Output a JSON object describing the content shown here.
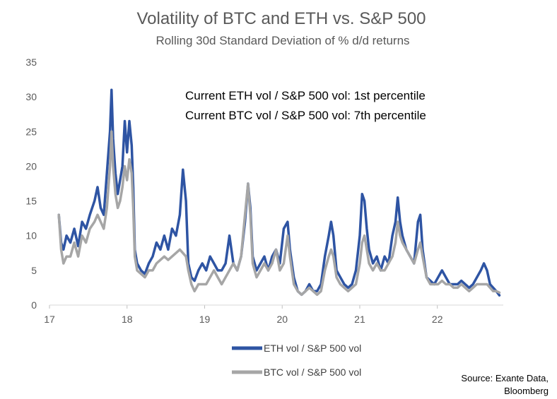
{
  "chart_data": {
    "type": "line",
    "title": "Volatility of BTC and ETH vs. S&P 500",
    "subtitle": "Rolling 30d Standard Deviation of % d/d returns",
    "xlabel": "",
    "ylabel": "",
    "xlim": [
      17.0,
      22.85
    ],
    "ylim": [
      0,
      35
    ],
    "x_ticks": [
      "17",
      "18",
      "19",
      "20",
      "21",
      "22"
    ],
    "y_ticks": [
      "0",
      "5",
      "10",
      "15",
      "20",
      "25",
      "30",
      "35"
    ],
    "grid": false,
    "legend_position": "bottom",
    "annotations": [
      "Current ETH vol / S&P 500 vol: 1st percentile",
      "Current BTC vol / S&P 500 vol: 7th percentile"
    ],
    "source": [
      "Source: Exante Data,",
      "Bloomberg"
    ],
    "series": [
      {
        "name": "ETH vol / S&P 500 vol",
        "color": "#2e54a3",
        "points": [
          [
            17.12,
            13
          ],
          [
            17.15,
            9
          ],
          [
            17.18,
            8
          ],
          [
            17.22,
            10
          ],
          [
            17.27,
            9
          ],
          [
            17.32,
            11
          ],
          [
            17.37,
            8.5
          ],
          [
            17.42,
            12
          ],
          [
            17.47,
            11
          ],
          [
            17.52,
            13
          ],
          [
            17.58,
            15
          ],
          [
            17.62,
            17
          ],
          [
            17.66,
            14
          ],
          [
            17.7,
            13
          ],
          [
            17.74,
            19
          ],
          [
            17.78,
            25
          ],
          [
            17.8,
            31
          ],
          [
            17.82,
            24
          ],
          [
            17.85,
            19
          ],
          [
            17.88,
            16
          ],
          [
            17.91,
            18
          ],
          [
            17.94,
            20
          ],
          [
            17.97,
            26.5
          ],
          [
            18.0,
            22
          ],
          [
            18.03,
            26.5
          ],
          [
            18.06,
            23
          ],
          [
            18.08,
            17
          ],
          [
            18.1,
            8
          ],
          [
            18.13,
            6
          ],
          [
            18.18,
            5
          ],
          [
            18.23,
            4.5
          ],
          [
            18.28,
            6
          ],
          [
            18.33,
            7
          ],
          [
            18.38,
            9
          ],
          [
            18.43,
            8
          ],
          [
            18.48,
            10
          ],
          [
            18.53,
            8
          ],
          [
            18.58,
            11
          ],
          [
            18.63,
            10
          ],
          [
            18.68,
            13
          ],
          [
            18.72,
            19.5
          ],
          [
            18.76,
            15
          ],
          [
            18.79,
            6
          ],
          [
            18.83,
            4
          ],
          [
            18.87,
            3.5
          ],
          [
            18.92,
            5
          ],
          [
            18.97,
            6
          ],
          [
            19.02,
            5
          ],
          [
            19.07,
            7
          ],
          [
            19.12,
            6
          ],
          [
            19.17,
            5
          ],
          [
            19.22,
            5
          ],
          [
            19.27,
            6
          ],
          [
            19.32,
            10
          ],
          [
            19.37,
            6
          ],
          [
            19.42,
            5
          ],
          [
            19.47,
            7
          ],
          [
            19.52,
            12
          ],
          [
            19.56,
            17.5
          ],
          [
            19.59,
            14
          ],
          [
            19.62,
            7
          ],
          [
            19.67,
            5
          ],
          [
            19.72,
            6
          ],
          [
            19.77,
            7
          ],
          [
            19.82,
            5
          ],
          [
            19.87,
            7
          ],
          [
            19.92,
            8
          ],
          [
            19.97,
            6
          ],
          [
            20.02,
            11
          ],
          [
            20.07,
            12
          ],
          [
            20.1,
            8
          ],
          [
            20.15,
            4
          ],
          [
            20.2,
            2
          ],
          [
            20.25,
            1.5
          ],
          [
            20.3,
            2
          ],
          [
            20.35,
            3
          ],
          [
            20.4,
            2
          ],
          [
            20.45,
            2
          ],
          [
            20.5,
            3
          ],
          [
            20.55,
            7
          ],
          [
            20.6,
            10
          ],
          [
            20.63,
            12
          ],
          [
            20.66,
            10
          ],
          [
            20.7,
            5
          ],
          [
            20.75,
            4
          ],
          [
            20.8,
            3
          ],
          [
            20.85,
            2.5
          ],
          [
            20.9,
            3
          ],
          [
            20.95,
            5
          ],
          [
            21.0,
            10
          ],
          [
            21.03,
            16
          ],
          [
            21.06,
            15
          ],
          [
            21.09,
            11
          ],
          [
            21.12,
            8
          ],
          [
            21.17,
            6
          ],
          [
            21.22,
            7
          ],
          [
            21.27,
            5
          ],
          [
            21.32,
            7
          ],
          [
            21.37,
            6
          ],
          [
            21.42,
            10
          ],
          [
            21.46,
            12
          ],
          [
            21.49,
            15.5
          ],
          [
            21.52,
            12
          ],
          [
            21.55,
            10
          ],
          [
            21.6,
            8
          ],
          [
            21.65,
            7
          ],
          [
            21.7,
            6
          ],
          [
            21.75,
            12
          ],
          [
            21.78,
            13
          ],
          [
            21.81,
            8
          ],
          [
            21.86,
            4
          ],
          [
            21.91,
            3.5
          ],
          [
            21.96,
            3
          ],
          [
            22.01,
            4
          ],
          [
            22.06,
            5
          ],
          [
            22.11,
            4
          ],
          [
            22.16,
            3
          ],
          [
            22.21,
            3
          ],
          [
            22.26,
            3
          ],
          [
            22.31,
            3.5
          ],
          [
            22.36,
            3
          ],
          [
            22.41,
            2.5
          ],
          [
            22.46,
            3
          ],
          [
            22.51,
            4
          ],
          [
            22.56,
            5
          ],
          [
            22.6,
            6
          ],
          [
            22.64,
            5
          ],
          [
            22.68,
            3
          ],
          [
            22.72,
            2.5
          ],
          [
            22.76,
            2
          ],
          [
            22.8,
            1.4
          ]
        ]
      },
      {
        "name": "BTC vol / S&P 500 vol",
        "color": "#a6a6a6",
        "points": [
          [
            17.12,
            13
          ],
          [
            17.15,
            8
          ],
          [
            17.18,
            6
          ],
          [
            17.22,
            7
          ],
          [
            17.27,
            7
          ],
          [
            17.32,
            9
          ],
          [
            17.37,
            7
          ],
          [
            17.42,
            10
          ],
          [
            17.47,
            9
          ],
          [
            17.52,
            11
          ],
          [
            17.58,
            12
          ],
          [
            17.62,
            13
          ],
          [
            17.66,
            12
          ],
          [
            17.7,
            11
          ],
          [
            17.74,
            14
          ],
          [
            17.78,
            20
          ],
          [
            17.8,
            25
          ],
          [
            17.82,
            20
          ],
          [
            17.85,
            16
          ],
          [
            17.88,
            14
          ],
          [
            17.91,
            15
          ],
          [
            17.94,
            17
          ],
          [
            17.97,
            20
          ],
          [
            18.0,
            18
          ],
          [
            18.03,
            21
          ],
          [
            18.06,
            19
          ],
          [
            18.08,
            14
          ],
          [
            18.1,
            7
          ],
          [
            18.13,
            5
          ],
          [
            18.18,
            4.5
          ],
          [
            18.23,
            4
          ],
          [
            18.28,
            5
          ],
          [
            18.33,
            5
          ],
          [
            18.38,
            6
          ],
          [
            18.43,
            6.5
          ],
          [
            18.48,
            7
          ],
          [
            18.53,
            6.5
          ],
          [
            18.58,
            7
          ],
          [
            18.63,
            7.5
          ],
          [
            18.68,
            8
          ],
          [
            18.72,
            7.5
          ],
          [
            18.76,
            7
          ],
          [
            18.79,
            5
          ],
          [
            18.83,
            3
          ],
          [
            18.87,
            2
          ],
          [
            18.92,
            3
          ],
          [
            18.97,
            3
          ],
          [
            19.02,
            3
          ],
          [
            19.07,
            4
          ],
          [
            19.12,
            5
          ],
          [
            19.17,
            4
          ],
          [
            19.22,
            3
          ],
          [
            19.27,
            4
          ],
          [
            19.32,
            5
          ],
          [
            19.37,
            6
          ],
          [
            19.42,
            5
          ],
          [
            19.47,
            7
          ],
          [
            19.52,
            13
          ],
          [
            19.56,
            17.5
          ],
          [
            19.59,
            13
          ],
          [
            19.62,
            6
          ],
          [
            19.67,
            4
          ],
          [
            19.72,
            5
          ],
          [
            19.77,
            6
          ],
          [
            19.82,
            5
          ],
          [
            19.87,
            6
          ],
          [
            19.92,
            8
          ],
          [
            19.97,
            5
          ],
          [
            20.02,
            6
          ],
          [
            20.07,
            10
          ],
          [
            20.1,
            7
          ],
          [
            20.15,
            3
          ],
          [
            20.2,
            2
          ],
          [
            20.25,
            1.5
          ],
          [
            20.3,
            2
          ],
          [
            20.35,
            2.5
          ],
          [
            20.4,
            2
          ],
          [
            20.45,
            1.5
          ],
          [
            20.5,
            2
          ],
          [
            20.55,
            5
          ],
          [
            20.6,
            7
          ],
          [
            20.63,
            8
          ],
          [
            20.66,
            7
          ],
          [
            20.7,
            4
          ],
          [
            20.75,
            3
          ],
          [
            20.8,
            2.5
          ],
          [
            20.85,
            2
          ],
          [
            20.9,
            2.5
          ],
          [
            20.95,
            3
          ],
          [
            21.0,
            6
          ],
          [
            21.03,
            9
          ],
          [
            21.06,
            10
          ],
          [
            21.09,
            8
          ],
          [
            21.12,
            6
          ],
          [
            21.17,
            5
          ],
          [
            21.22,
            6
          ],
          [
            21.27,
            5
          ],
          [
            21.32,
            5
          ],
          [
            21.37,
            6
          ],
          [
            21.42,
            7
          ],
          [
            21.46,
            9
          ],
          [
            21.49,
            12
          ],
          [
            21.52,
            10
          ],
          [
            21.55,
            9
          ],
          [
            21.6,
            8
          ],
          [
            21.65,
            7
          ],
          [
            21.7,
            6
          ],
          [
            21.75,
            8
          ],
          [
            21.78,
            9
          ],
          [
            21.81,
            7
          ],
          [
            21.86,
            4
          ],
          [
            21.91,
            3
          ],
          [
            21.96,
            3
          ],
          [
            22.01,
            3
          ],
          [
            22.06,
            3.5
          ],
          [
            22.11,
            3
          ],
          [
            22.16,
            3
          ],
          [
            22.21,
            2.5
          ],
          [
            22.26,
            2.5
          ],
          [
            22.31,
            3
          ],
          [
            22.36,
            2.5
          ],
          [
            22.41,
            2
          ],
          [
            22.46,
            2.5
          ],
          [
            22.51,
            3
          ],
          [
            22.56,
            3
          ],
          [
            22.6,
            3
          ],
          [
            22.64,
            3
          ],
          [
            22.68,
            2.5
          ],
          [
            22.72,
            2
          ],
          [
            22.76,
            2
          ],
          [
            22.8,
            1.8
          ]
        ]
      }
    ]
  }
}
